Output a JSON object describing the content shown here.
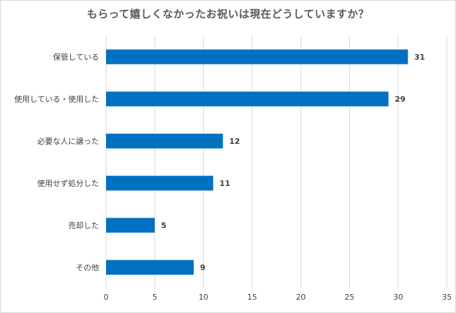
{
  "chart_data": {
    "type": "bar",
    "orientation": "horizontal",
    "title": "もらって嬉しくなかったお祝いは現在どうしていますか？",
    "categories": [
      "保管している",
      "使用している・使用した",
      "必要な人に譲った",
      "使用せず処分した",
      "売却した",
      "その他"
    ],
    "values": [
      31,
      29,
      12,
      11,
      5,
      9
    ],
    "xlim": [
      0,
      35
    ],
    "xticks": [
      0,
      5,
      10,
      15,
      20,
      25,
      30,
      35
    ],
    "grid": true,
    "bar_color": "#0070c0",
    "gridline_color": "#d9d9d9",
    "xlabel": "",
    "ylabel": ""
  }
}
